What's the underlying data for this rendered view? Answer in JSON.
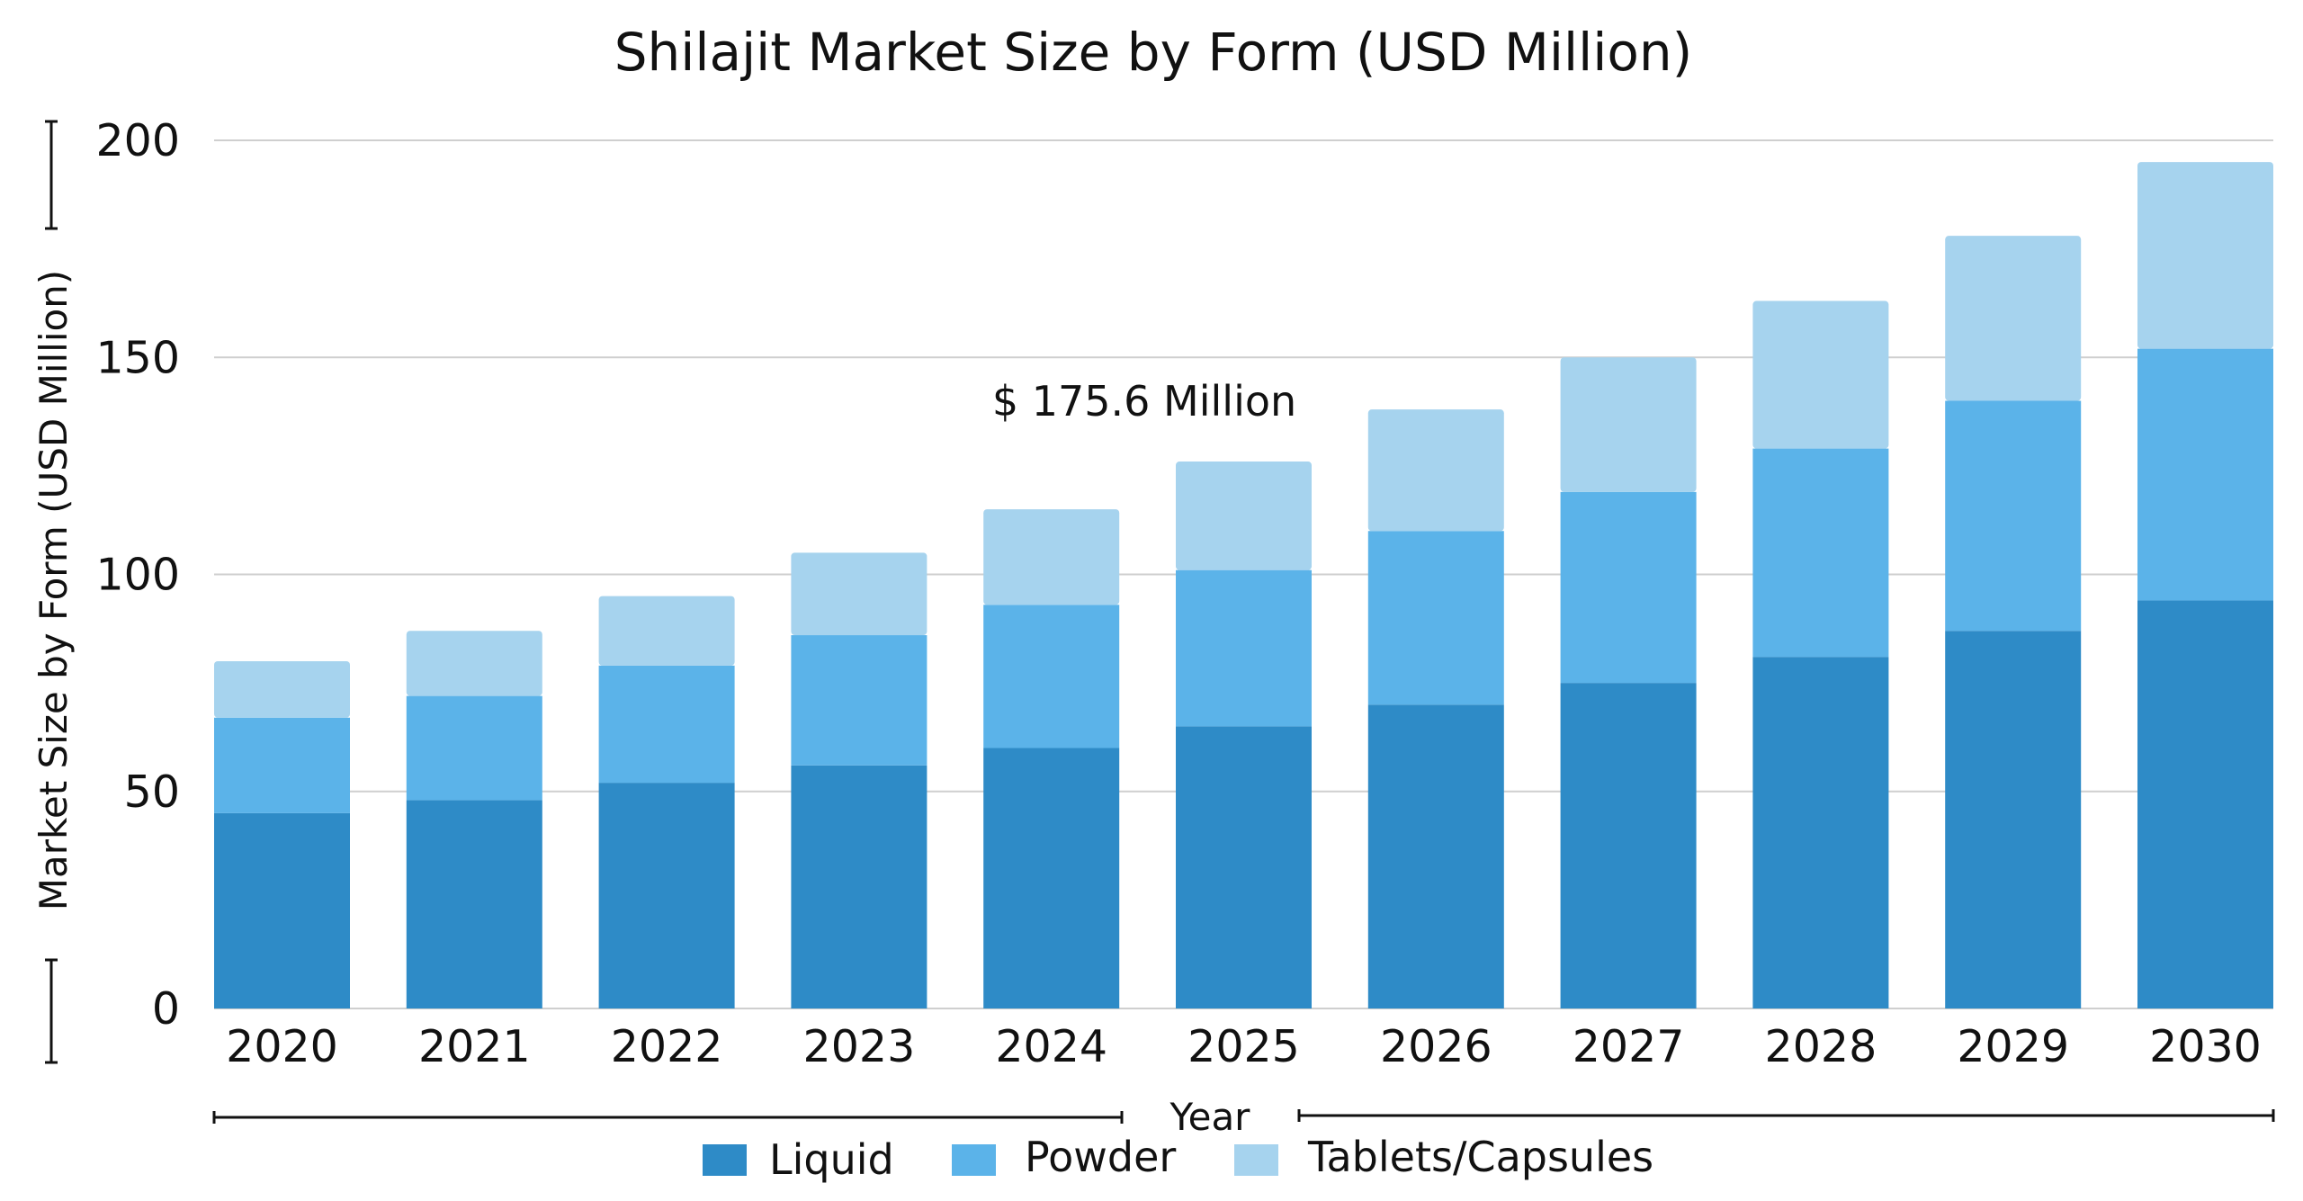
{
  "chart_data": {
    "type": "bar",
    "stacked": true,
    "title": "Shilajit Market Size by Form (USD Million)",
    "xlabel": "Year",
    "ylabel": "Market Size by Form (USD Million)",
    "ylim": [
      0,
      200
    ],
    "yticks": [
      0,
      50,
      100,
      150,
      200
    ],
    "grid": true,
    "legend_position": "bottom",
    "annotation": "$ 175.6 Million",
    "categories": [
      "2020",
      "2021",
      "2022",
      "2023",
      "2024",
      "2025",
      "2026",
      "2027",
      "2028",
      "2029",
      "2030"
    ],
    "series": [
      {
        "name": "Liquid",
        "color": "#2E8BC7",
        "values": [
          45,
          48,
          52,
          56,
          60,
          65,
          70,
          75,
          81,
          87,
          94
        ]
      },
      {
        "name": "Powder",
        "color": "#5BB3E9",
        "values": [
          22,
          24,
          27,
          30,
          33,
          36,
          40,
          44,
          48,
          53,
          58
        ]
      },
      {
        "name": "Tablets/Capsules",
        "color": "#A6D3EE",
        "values": [
          13,
          15,
          16,
          19,
          22,
          25,
          28,
          31,
          34,
          38,
          43
        ]
      }
    ]
  }
}
